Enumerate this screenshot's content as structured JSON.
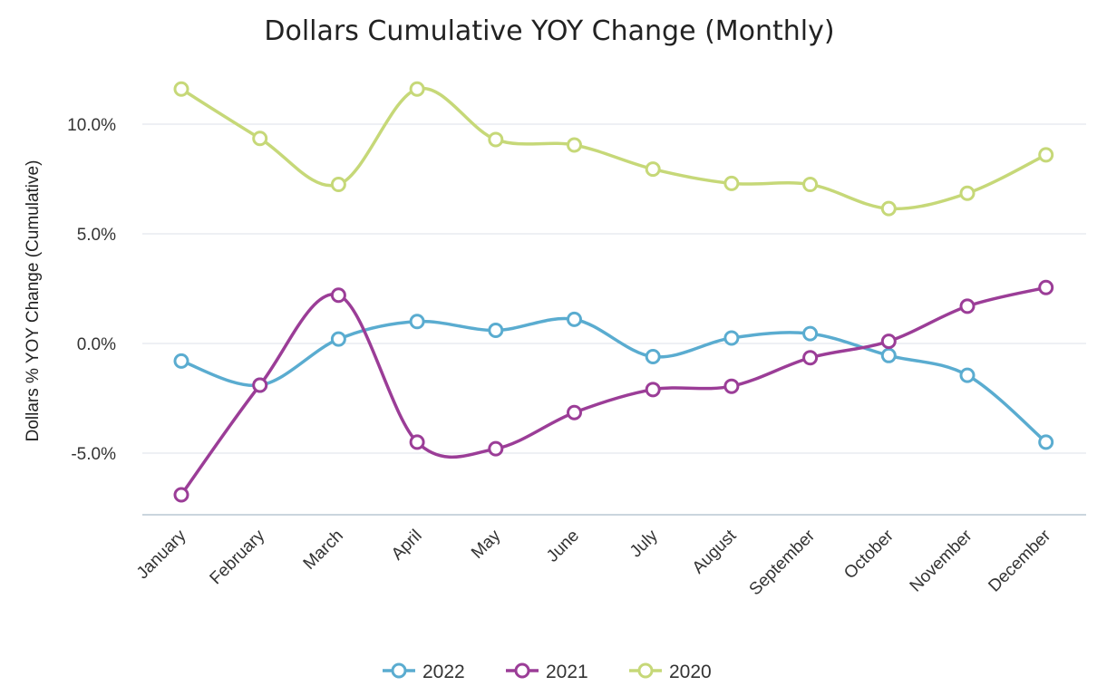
{
  "chart_data": {
    "type": "line",
    "title": "Dollars Cumulative YOY Change (Monthly)",
    "xlabel": "",
    "ylabel": "Dollars % YOY Change (Cumulative)",
    "categories": [
      "January",
      "February",
      "March",
      "April",
      "May",
      "June",
      "July",
      "August",
      "September",
      "October",
      "November",
      "December"
    ],
    "ylim": [
      -7.8,
      12.5
    ],
    "yticks": [
      10.0,
      5.0,
      0.0,
      -5.0
    ],
    "ytick_labels": [
      "10.0%",
      "5.0%",
      "0.0%",
      "-5.0%"
    ],
    "grid": true,
    "legend_position": "bottom",
    "series": [
      {
        "name": "2022",
        "color": "#5aacd0",
        "values": [
          -0.8,
          -1.9,
          0.2,
          1.0,
          0.6,
          1.1,
          -0.6,
          0.25,
          0.45,
          -0.55,
          -1.45,
          -4.5
        ]
      },
      {
        "name": "2021",
        "color": "#9b3d97",
        "values": [
          -6.9,
          -1.9,
          2.2,
          -4.5,
          -4.8,
          -3.15,
          -2.1,
          -1.95,
          -0.65,
          0.1,
          1.7,
          2.55
        ]
      },
      {
        "name": "2020",
        "color": "#c6d878",
        "values": [
          11.6,
          9.35,
          7.25,
          11.6,
          9.3,
          9.05,
          7.95,
          7.3,
          7.25,
          6.15,
          6.85,
          8.6
        ]
      }
    ]
  }
}
